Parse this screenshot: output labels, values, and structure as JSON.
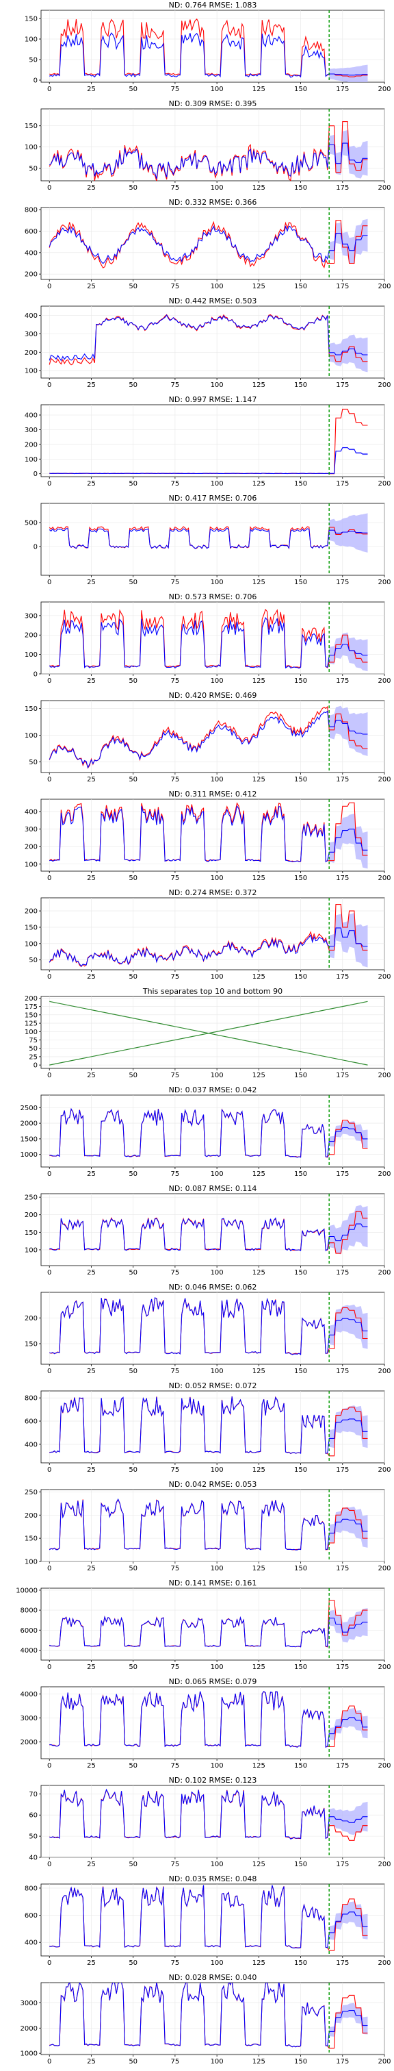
{
  "x_ticks": [
    0,
    25,
    50,
    75,
    100,
    125,
    150,
    175,
    200
  ],
  "x_range": [
    -5,
    200
  ],
  "forecast_start": 167,
  "colors": {
    "target": "#ff0000",
    "forecast": "#0000ff",
    "band": "#b8b8ff",
    "split": "#009900",
    "cross": "#2e8b2e"
  },
  "chart_data": [
    {
      "type": "line",
      "title": "ND:  0.764 RMSE:  1.083",
      "ylim": [
        -5,
        170
      ],
      "yticks": [
        0,
        50,
        100,
        150
      ],
      "pattern": "weekly",
      "base": 5,
      "amp": 120,
      "noise": 35,
      "blue_scale": 0.75,
      "fc_level": 15,
      "fc_width": 20,
      "red_tail": [
        15,
        12,
        10,
        8,
        10,
        12,
        15
      ],
      "grid_x": true,
      "grid_y": true
    },
    {
      "type": "line",
      "title": "ND:  0.309 RMSE:  0.395",
      "ylim": [
        20,
        190
      ],
      "yticks": [
        50,
        100,
        150
      ],
      "pattern": "noisy",
      "base": 60,
      "amp": 40,
      "noise": 30,
      "blue_scale": 0.8,
      "fc_level": 75,
      "fc_width": 35,
      "red_tail": [
        150,
        40,
        160,
        60,
        45,
        70,
        80
      ],
      "grid_x": true,
      "grid_y": true
    },
    {
      "type": "line",
      "title": "ND:  0.332 RMSE:  0.366",
      "ylim": [
        150,
        820
      ],
      "yticks": [
        200,
        400,
        600,
        800
      ],
      "pattern": "wave",
      "base": 470,
      "amp": 170,
      "noise": 90,
      "blue_scale": 0.8,
      "fc_level": 500,
      "fc_width": 130,
      "red_tail": [
        300,
        700,
        450,
        300,
        550,
        650,
        600
      ],
      "grid_x": true,
      "grid_y": true
    },
    {
      "type": "line",
      "title": "ND:  0.442 RMSE:  0.503",
      "ylim": [
        60,
        450
      ],
      "yticks": [
        100,
        200,
        300,
        400
      ],
      "pattern": "step",
      "base": 360,
      "amp": 60,
      "noise": 30,
      "blue_scale": 0.9,
      "fc_level": 210,
      "fc_width": 80,
      "red_tail": [
        180,
        150,
        200,
        230,
        170,
        150,
        180
      ],
      "grid_x": true,
      "grid_y": true
    },
    {
      "type": "line",
      "title": "ND:  0.997 RMSE:  1.147",
      "ylim": [
        -20,
        470
      ],
      "yticks": [
        0,
        100,
        200,
        300,
        400
      ],
      "pattern": "flat",
      "base": 2,
      "amp": 0,
      "noise": 2,
      "blue_scale": 1,
      "fc_level": 3,
      "fc_width": 5,
      "red_tail": [
        0,
        380,
        440,
        410,
        350,
        330,
        340
      ],
      "grid_x": true,
      "grid_y": true
    },
    {
      "type": "line",
      "title": "ND:  0.417 RMSE:  0.706",
      "ylim": [
        -600,
        900
      ],
      "yticks": [
        0,
        500
      ],
      "pattern": "square",
      "base": 0,
      "amp": 420,
      "noise": 80,
      "blue_scale": 0.9,
      "fc_level": 300,
      "fc_width": 350,
      "red_tail": [
        400,
        250,
        300,
        350,
        280,
        260,
        300
      ],
      "grid_x": true,
      "grid_y": true
    },
    {
      "type": "line",
      "title": "ND:  0.573 RMSE:  0.706",
      "ylim": [
        0,
        370
      ],
      "yticks": [
        0,
        100,
        200,
        300
      ],
      "pattern": "weekly",
      "base": 20,
      "amp": 260,
      "noise": 50,
      "blue_scale": 0.85,
      "fc_level": 120,
      "fc_width": 70,
      "red_tail": [
        60,
        150,
        200,
        120,
        80,
        60,
        40
      ],
      "grid_x": true,
      "grid_y": true
    },
    {
      "type": "line",
      "title": "ND:  0.420 RMSE:  0.469",
      "ylim": [
        30,
        165
      ],
      "yticks": [
        50,
        100,
        150
      ],
      "pattern": "trend",
      "base": 55,
      "amp": 80,
      "noise": 15,
      "blue_scale": 0.9,
      "fc_level": 120,
      "fc_width": 35,
      "red_tail": [
        110,
        140,
        125,
        90,
        80,
        75,
        70
      ],
      "grid_x": true,
      "grid_y": true
    },
    {
      "type": "line",
      "title": "ND:  0.311 RMSE:  0.412",
      "ylim": [
        60,
        470
      ],
      "yticks": [
        100,
        200,
        300,
        400
      ],
      "pattern": "weekly",
      "base": 100,
      "amp": 290,
      "noise": 35,
      "blue_scale": 0.95,
      "fc_level": 200,
      "fc_width": 90,
      "red_tail": [
        120,
        330,
        430,
        450,
        250,
        150,
        120
      ],
      "grid_x": true,
      "grid_y": true
    },
    {
      "type": "line",
      "title": "ND:  0.274 RMSE:  0.372",
      "ylim": [
        20,
        240
      ],
      "yticks": [
        50,
        100,
        150,
        200
      ],
      "pattern": "trend2",
      "base": 55,
      "amp": 60,
      "noise": 30,
      "blue_scale": 0.9,
      "fc_level": 100,
      "fc_width": 55,
      "red_tail": [
        80,
        220,
        150,
        200,
        100,
        80,
        90
      ],
      "grid_x": true,
      "grid_y": true
    },
    {
      "type": "line",
      "title": "This separates top 10 and bottom 90",
      "ylim": [
        -10,
        205
      ],
      "yticks": [
        0,
        25,
        50,
        75,
        100,
        125,
        150,
        175,
        200
      ],
      "pattern": "cross",
      "grid_x": true,
      "grid_y": true
    },
    {
      "type": "line",
      "title": "ND:  0.037 RMSE:  0.042",
      "ylim": [
        600,
        2900
      ],
      "yticks": [
        1000,
        1500,
        2000,
        2500
      ],
      "pattern": "weekly",
      "base": 850,
      "amp": 1350,
      "noise": 120,
      "blue_scale": 1,
      "fc_level": 1700,
      "fc_width": 250,
      "red_tail": [
        1000,
        1800,
        2100,
        2000,
        1700,
        1200,
        900
      ],
      "grid_x": true,
      "grid_y": true
    },
    {
      "type": "line",
      "title": "ND:  0.087 RMSE:  0.114",
      "ylim": [
        55,
        260
      ],
      "yticks": [
        50,
        100,
        150,
        200,
        250
      ],
      "pattern": "weekly",
      "base": 95,
      "amp": 80,
      "noise": 25,
      "blue_scale": 1,
      "fc_level": 150,
      "fc_width": 50,
      "red_tail": [
        120,
        90,
        130,
        170,
        210,
        190,
        160
      ],
      "grid_x": true,
      "grid_y": true
    },
    {
      "type": "line",
      "title": "ND:  0.046 RMSE:  0.062",
      "ylim": [
        110,
        250
      ],
      "yticks": [
        150,
        200
      ],
      "pattern": "weekly",
      "base": 125,
      "amp": 95,
      "noise": 10,
      "blue_scale": 1,
      "fc_level": 185,
      "fc_width": 30,
      "red_tail": [
        140,
        210,
        220,
        215,
        200,
        160,
        130
      ],
      "grid_x": true,
      "grid_y": true
    },
    {
      "type": "line",
      "title": "ND:  0.052 RMSE:  0.072",
      "ylim": [
        240,
        860
      ],
      "yticks": [
        400,
        600,
        800
      ],
      "pattern": "weekly",
      "base": 300,
      "amp": 430,
      "noise": 40,
      "blue_scale": 1,
      "fc_level": 550,
      "fc_width": 120,
      "red_tail": [
        300,
        650,
        700,
        720,
        680,
        450,
        300
      ],
      "grid_x": true,
      "grid_y": true
    },
    {
      "type": "line",
      "title": "ND:  0.042 RMSE:  0.053",
      "ylim": [
        100,
        255
      ],
      "yticks": [
        100,
        150,
        200,
        250
      ],
      "pattern": "weekly",
      "base": 120,
      "amp": 95,
      "noise": 12,
      "blue_scale": 1,
      "fc_level": 175,
      "fc_width": 30,
      "red_tail": [
        140,
        200,
        215,
        210,
        190,
        150,
        120
      ],
      "grid_x": true,
      "grid_y": true
    },
    {
      "type": "line",
      "title": "ND:  0.141 RMSE:  0.161",
      "ylim": [
        3000,
        10200
      ],
      "yticks": [
        4000,
        6000,
        8000,
        10000
      ],
      "pattern": "weekly",
      "base": 4200,
      "amp": 2600,
      "noise": 500,
      "blue_scale": 1,
      "fc_level": 6000,
      "fc_width": 1200,
      "red_tail": [
        9000,
        7500,
        5500,
        6500,
        7500,
        8000,
        7000
      ],
      "grid_x": true,
      "grid_y": true
    },
    {
      "type": "line",
      "title": "ND:  0.065 RMSE:  0.079",
      "ylim": [
        1300,
        4300
      ],
      "yticks": [
        2000,
        3000,
        4000
      ],
      "pattern": "weekly",
      "base": 1700,
      "amp": 2000,
      "noise": 200,
      "blue_scale": 1,
      "fc_level": 2700,
      "fc_width": 400,
      "red_tail": [
        1800,
        2600,
        3300,
        3500,
        3200,
        2500,
        1900
      ],
      "grid_x": true,
      "grid_y": true
    },
    {
      "type": "line",
      "title": "ND:  0.102 RMSE:  0.123",
      "ylim": [
        40,
        74
      ],
      "yticks": [
        40,
        50,
        60,
        70
      ],
      "pattern": "weekly",
      "base": 48,
      "amp": 20,
      "noise": 3,
      "blue_scale": 1,
      "fc_level": 62,
      "fc_width": 6,
      "red_tail": [
        55,
        52,
        50,
        48,
        52,
        55,
        47
      ],
      "grid_x": true,
      "grid_y": true
    },
    {
      "type": "line",
      "title": "ND:  0.035 RMSE:  0.048",
      "ylim": [
        300,
        830
      ],
      "yticks": [
        400,
        600,
        800
      ],
      "pattern": "weekly",
      "base": 340,
      "amp": 400,
      "noise": 25,
      "blue_scale": 1,
      "fc_level": 560,
      "fc_width": 80,
      "red_tail": [
        340,
        550,
        680,
        720,
        650,
        450,
        330
      ],
      "grid_x": true,
      "grid_y": true
    },
    {
      "type": "line",
      "title": "ND:  0.028 RMSE:  0.040",
      "ylim": [
        950,
        3800
      ],
      "yticks": [
        1000,
        2000,
        3000
      ],
      "pattern": "weekly",
      "base": 1150,
      "amp": 2300,
      "noise": 120,
      "blue_scale": 1,
      "fc_level": 2300,
      "fc_width": 300,
      "red_tail": [
        1200,
        2600,
        3200,
        3300,
        2800,
        1800,
        1150
      ],
      "grid_x": true,
      "grid_y": true
    }
  ]
}
